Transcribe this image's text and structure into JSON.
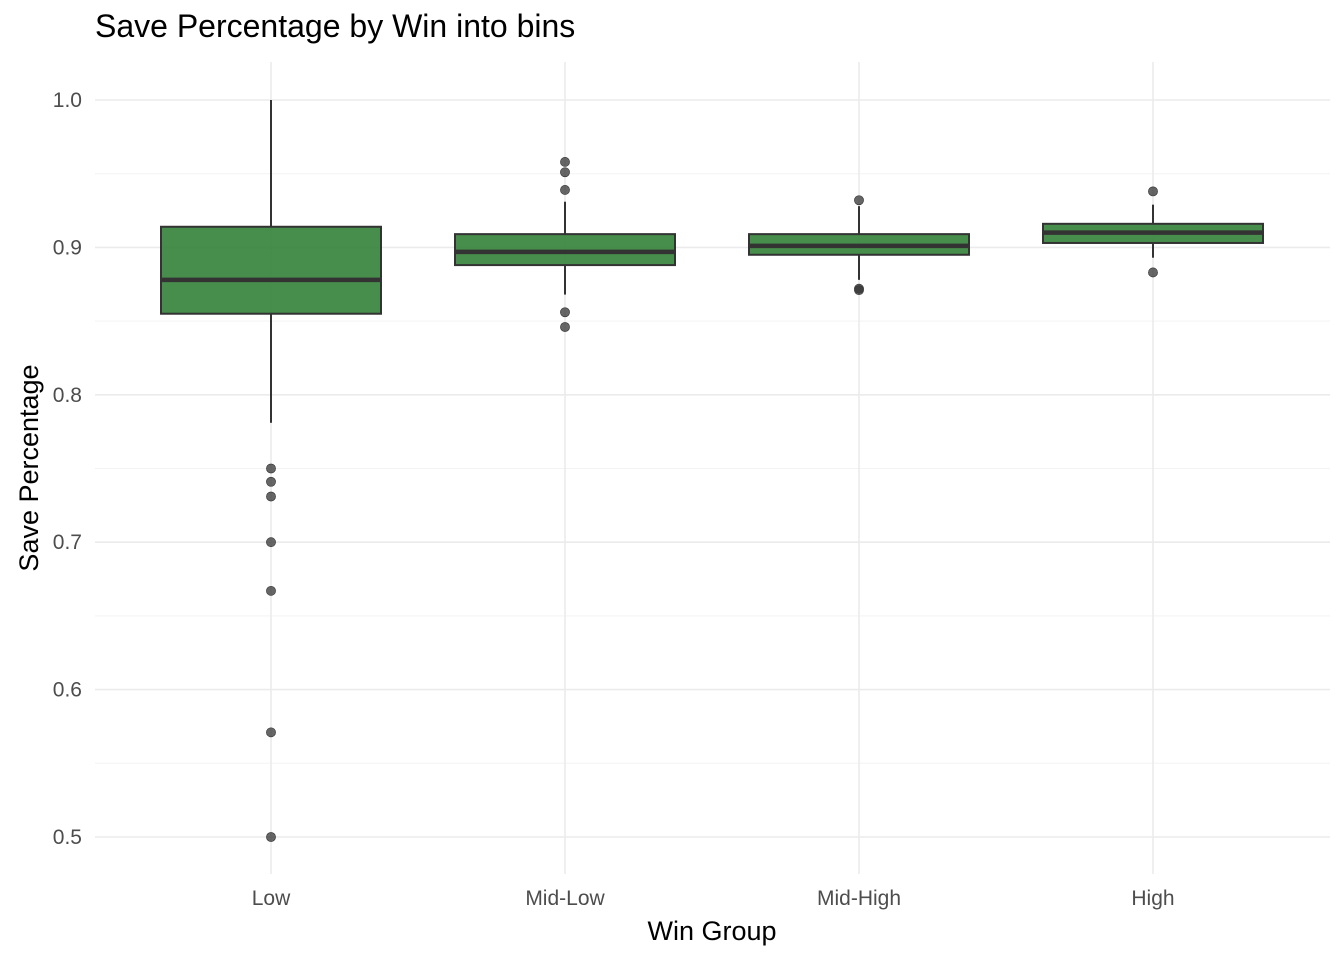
{
  "chart_data": {
    "type": "box",
    "title": "Save Percentage by Win into bins",
    "xlabel": "Win Group",
    "ylabel": "Save Percentage",
    "categories": [
      "Low",
      "Mid-Low",
      "Mid-High",
      "High"
    ],
    "ylim": [
      0.475,
      1.025
    ],
    "yticks": [
      0.5,
      0.6,
      0.7,
      0.8,
      0.9,
      1.0
    ],
    "ytick_labels": [
      "0.5",
      "0.6",
      "0.7",
      "0.8",
      "0.9",
      "1.0"
    ],
    "grid": true,
    "fill_color": "#2e7d32",
    "boxes": [
      {
        "category": "Low",
        "whisker_low": 0.781,
        "q1": 0.855,
        "median": 0.878,
        "q3": 0.914,
        "whisker_high": 1.0,
        "outliers": [
          0.75,
          0.741,
          0.731,
          0.7,
          0.667,
          0.571,
          0.5
        ]
      },
      {
        "category": "Mid-Low",
        "whisker_low": 0.868,
        "q1": 0.888,
        "median": 0.897,
        "q3": 0.909,
        "whisker_high": 0.931,
        "outliers": [
          0.958,
          0.951,
          0.939,
          0.856,
          0.846
        ]
      },
      {
        "category": "Mid-High",
        "whisker_low": 0.878,
        "q1": 0.895,
        "median": 0.901,
        "q3": 0.909,
        "whisker_high": 0.928,
        "outliers": [
          0.932,
          0.872,
          0.871
        ]
      },
      {
        "category": "High",
        "whisker_low": 0.893,
        "q1": 0.903,
        "median": 0.91,
        "q3": 0.916,
        "whisker_high": 0.929,
        "outliers": [
          0.938,
          0.883
        ]
      }
    ]
  }
}
